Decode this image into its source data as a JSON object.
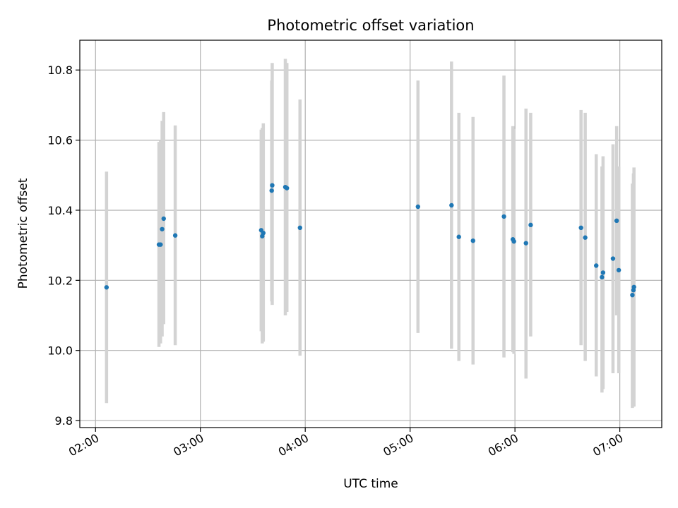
{
  "chart_data": {
    "type": "scatter",
    "title": "Photometric offset variation",
    "xlabel": "UTC time",
    "ylabel": "Photometric offset",
    "xlim": [
      1.85,
      7.4
    ],
    "ylim": [
      9.78,
      10.885
    ],
    "x_unit": "hours UTC",
    "x_ticks": [
      {
        "value": 2,
        "label": "02:00"
      },
      {
        "value": 3,
        "label": "03:00"
      },
      {
        "value": 4,
        "label": "04:00"
      },
      {
        "value": 5,
        "label": "05:00"
      },
      {
        "value": 6,
        "label": "06:00"
      },
      {
        "value": 7,
        "label": "07:00"
      }
    ],
    "y_ticks": [
      {
        "value": 9.8,
        "label": "9.8"
      },
      {
        "value": 10.0,
        "label": "10.0"
      },
      {
        "value": 10.2,
        "label": "10.2"
      },
      {
        "value": 10.4,
        "label": "10.4"
      },
      {
        "value": 10.6,
        "label": "10.6"
      },
      {
        "value": 10.8,
        "label": "10.8"
      }
    ],
    "grid": true,
    "colors": {
      "point": "#1f77b4",
      "errorbar": "#d3d3d3",
      "grid": "#b0b0b0",
      "axis": "#000000"
    },
    "series": [
      {
        "name": "offset",
        "points": [
          {
            "x": 2.105,
            "y": 10.18,
            "lo": 9.85,
            "hi": 10.51
          },
          {
            "x": 2.605,
            "y": 10.302,
            "lo": 10.01,
            "hi": 10.595
          },
          {
            "x": 2.62,
            "y": 10.302,
            "lo": 10.02,
            "hi": 10.6
          },
          {
            "x": 2.635,
            "y": 10.346,
            "lo": 10.04,
            "hi": 10.655
          },
          {
            "x": 2.65,
            "y": 10.376,
            "lo": 10.075,
            "hi": 10.68
          },
          {
            "x": 2.76,
            "y": 10.328,
            "lo": 10.015,
            "hi": 10.642
          },
          {
            "x": 3.58,
            "y": 10.343,
            "lo": 10.055,
            "hi": 10.63
          },
          {
            "x": 3.59,
            "y": 10.326,
            "lo": 10.02,
            "hi": 10.635
          },
          {
            "x": 3.6,
            "y": 10.335,
            "lo": 10.025,
            "hi": 10.648
          },
          {
            "x": 3.68,
            "y": 10.456,
            "lo": 10.14,
            "hi": 10.77
          },
          {
            "x": 3.685,
            "y": 10.471,
            "lo": 10.13,
            "hi": 10.82
          },
          {
            "x": 3.81,
            "y": 10.466,
            "lo": 10.1,
            "hi": 10.832
          },
          {
            "x": 3.825,
            "y": 10.463,
            "lo": 10.11,
            "hi": 10.82
          },
          {
            "x": 3.95,
            "y": 10.35,
            "lo": 9.985,
            "hi": 10.716
          },
          {
            "x": 5.075,
            "y": 10.41,
            "lo": 10.05,
            "hi": 10.77
          },
          {
            "x": 5.395,
            "y": 10.414,
            "lo": 10.005,
            "hi": 10.824
          },
          {
            "x": 5.465,
            "y": 10.324,
            "lo": 9.97,
            "hi": 10.678
          },
          {
            "x": 5.6,
            "y": 10.313,
            "lo": 9.96,
            "hi": 10.666
          },
          {
            "x": 5.895,
            "y": 10.382,
            "lo": 9.98,
            "hi": 10.784
          },
          {
            "x": 5.98,
            "y": 10.317,
            "lo": 9.995,
            "hi": 10.64
          },
          {
            "x": 5.99,
            "y": 10.311,
            "lo": 9.99,
            "hi": 10.632
          },
          {
            "x": 6.105,
            "y": 10.306,
            "lo": 9.92,
            "hi": 10.69
          },
          {
            "x": 6.15,
            "y": 10.358,
            "lo": 10.04,
            "hi": 10.678
          },
          {
            "x": 6.63,
            "y": 10.35,
            "lo": 10.015,
            "hi": 10.686
          },
          {
            "x": 6.67,
            "y": 10.322,
            "lo": 9.97,
            "hi": 10.678
          },
          {
            "x": 6.775,
            "y": 10.242,
            "lo": 9.926,
            "hi": 10.56
          },
          {
            "x": 6.83,
            "y": 10.209,
            "lo": 9.88,
            "hi": 10.525
          },
          {
            "x": 6.84,
            "y": 10.222,
            "lo": 9.89,
            "hi": 10.554
          },
          {
            "x": 6.935,
            "y": 10.262,
            "lo": 9.935,
            "hi": 10.588
          },
          {
            "x": 6.97,
            "y": 10.37,
            "lo": 10.1,
            "hi": 10.64
          },
          {
            "x": 6.99,
            "y": 10.229,
            "lo": 9.935,
            "hi": 10.525
          },
          {
            "x": 7.12,
            "y": 10.158,
            "lo": 9.836,
            "hi": 10.476
          },
          {
            "x": 7.13,
            "y": 10.172,
            "lo": 9.84,
            "hi": 10.505
          },
          {
            "x": 7.135,
            "y": 10.181,
            "lo": 9.84,
            "hi": 10.522
          }
        ]
      }
    ]
  }
}
